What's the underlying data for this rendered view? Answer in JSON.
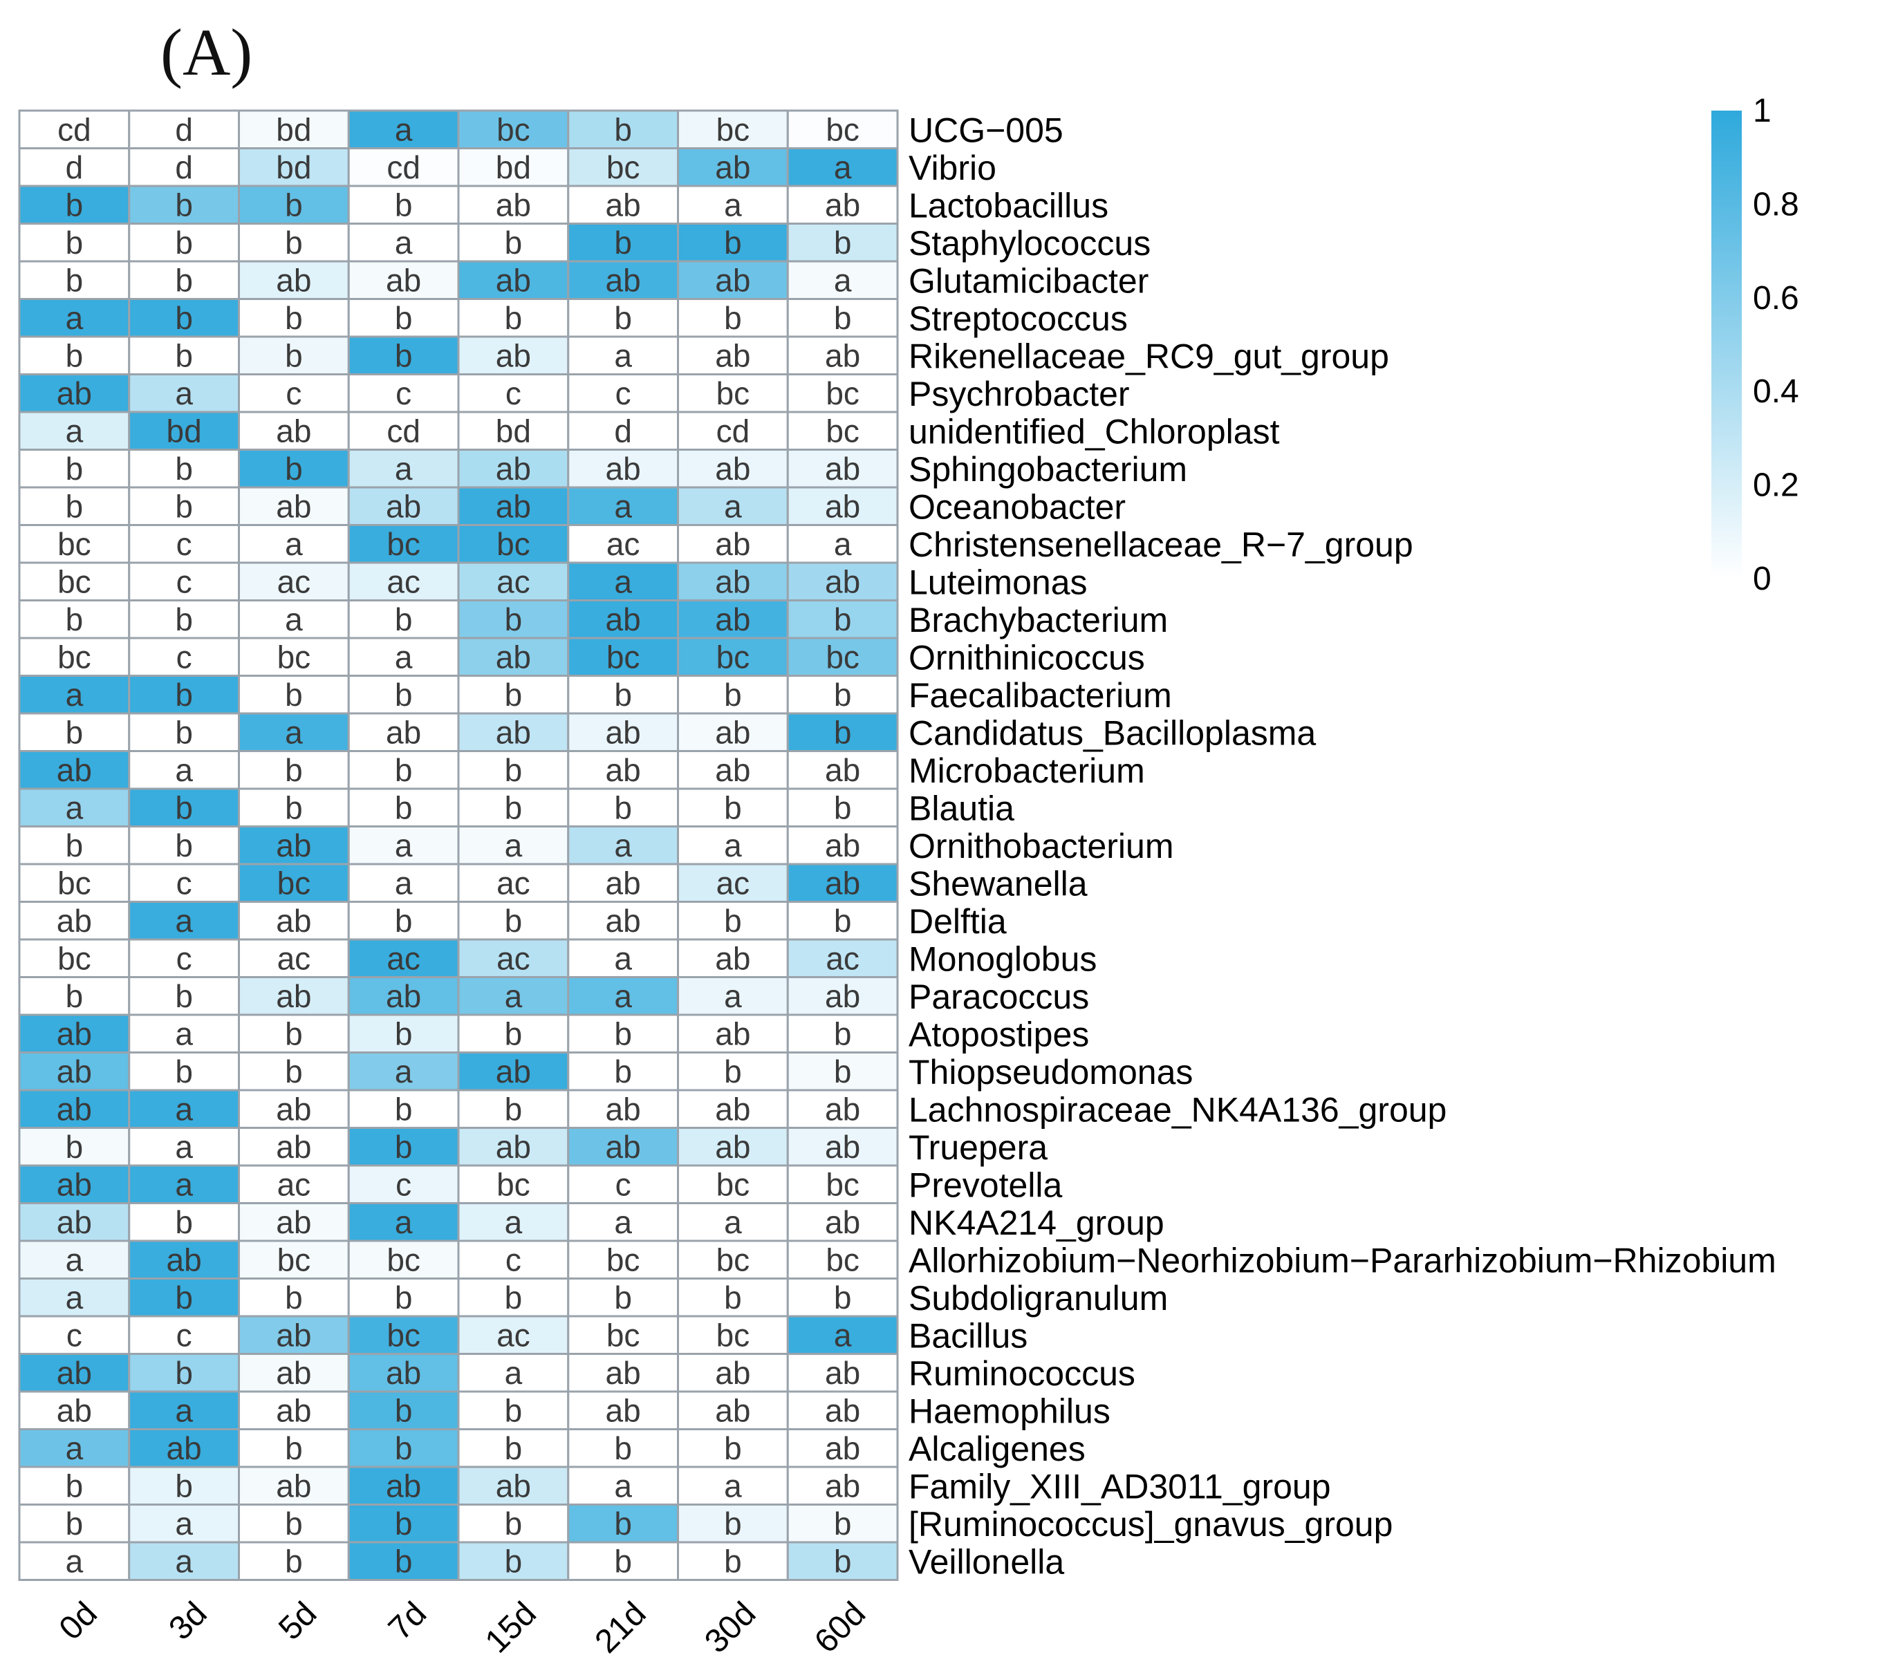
{
  "figure": {
    "panel_label": "(A)"
  },
  "chart_data": {
    "type": "heatmap",
    "columns": [
      "0d",
      "3d",
      "5d",
      "7d",
      "15d",
      "21d",
      "30d",
      "60d"
    ],
    "legend": {
      "min": 0,
      "max": 1,
      "ticks": [
        "1",
        "0.8",
        "0.6",
        "0.4",
        "0.2",
        "0"
      ],
      "low_color": "#ffffff",
      "high_color": "#2ea9dc"
    },
    "rows": [
      {
        "name": "UCG−005",
        "labels": [
          "cd",
          "d",
          "bd",
          "a",
          "bc",
          "b",
          "bc",
          "bc"
        ],
        "values": [
          0,
          0,
          0.05,
          0.95,
          0.7,
          0.4,
          0.08,
          0.02
        ]
      },
      {
        "name": "Vibrio",
        "labels": [
          "d",
          "d",
          "bd",
          "cd",
          "bd",
          "bc",
          "ab",
          "a"
        ],
        "values": [
          0,
          0,
          0.3,
          0.02,
          0.03,
          0.25,
          0.75,
          0.95
        ]
      },
      {
        "name": "Lactobacillus",
        "labels": [
          "b",
          "b",
          "b",
          "b",
          "ab",
          "ab",
          "a",
          "ab"
        ],
        "values": [
          0.95,
          0.65,
          0.75,
          0,
          0,
          0,
          0,
          0
        ]
      },
      {
        "name": "Staphylococcus",
        "labels": [
          "b",
          "b",
          "b",
          "a",
          "b",
          "b",
          "b",
          "b"
        ],
        "values": [
          0,
          0,
          0,
          0,
          0,
          0.95,
          0.95,
          0.25
        ]
      },
      {
        "name": "Glutamicibacter",
        "labels": [
          "b",
          "b",
          "ab",
          "ab",
          "ab",
          "ab",
          "ab",
          "a"
        ],
        "values": [
          0,
          0,
          0.15,
          0.05,
          0.85,
          0.9,
          0.7,
          0.05
        ]
      },
      {
        "name": "Streptococcus",
        "labels": [
          "a",
          "b",
          "b",
          "b",
          "b",
          "b",
          "b",
          "b"
        ],
        "values": [
          0.95,
          0.95,
          0,
          0,
          0,
          0,
          0,
          0
        ]
      },
      {
        "name": "Rikenellaceae_RC9_gut_group",
        "labels": [
          "b",
          "b",
          "b",
          "b",
          "ab",
          "a",
          "ab",
          "ab"
        ],
        "values": [
          0,
          0,
          0.08,
          0.95,
          0.15,
          0,
          0,
          0
        ]
      },
      {
        "name": "Psychrobacter",
        "labels": [
          "ab",
          "a",
          "c",
          "c",
          "c",
          "c",
          "bc",
          "bc"
        ],
        "values": [
          0.95,
          0.35,
          0,
          0,
          0,
          0,
          0,
          0
        ]
      },
      {
        "name": "unidentified_Chloroplast",
        "labels": [
          "a",
          "bd",
          "ab",
          "cd",
          "bd",
          "d",
          "cd",
          "bc"
        ],
        "values": [
          0.18,
          0.95,
          0,
          0,
          0,
          0,
          0,
          0
        ]
      },
      {
        "name": "Sphingobacterium",
        "labels": [
          "b",
          "b",
          "b",
          "a",
          "ab",
          "ab",
          "ab",
          "ab"
        ],
        "values": [
          0,
          0,
          0.95,
          0.25,
          0.4,
          0.1,
          0.1,
          0.1
        ]
      },
      {
        "name": "Oceanobacter",
        "labels": [
          "b",
          "b",
          "ab",
          "ab",
          "ab",
          "a",
          "a",
          "ab"
        ],
        "values": [
          0,
          0,
          0.05,
          0.35,
          0.95,
          0.85,
          0.35,
          0.15
        ]
      },
      {
        "name": "Christensenellaceae_R−7_group",
        "labels": [
          "bc",
          "c",
          "a",
          "bc",
          "bc",
          "ac",
          "ab",
          "a"
        ],
        "values": [
          0,
          0,
          0,
          0.95,
          0.95,
          0,
          0,
          0
        ]
      },
      {
        "name": "Luteimonas",
        "labels": [
          "bc",
          "c",
          "ac",
          "ac",
          "ac",
          "a",
          "ab",
          "ab"
        ],
        "values": [
          0,
          0,
          0.08,
          0.15,
          0.4,
          0.95,
          0.55,
          0.45
        ]
      },
      {
        "name": "Brachybacterium",
        "labels": [
          "b",
          "b",
          "a",
          "b",
          "b",
          "ab",
          "ab",
          "b"
        ],
        "values": [
          0,
          0,
          0,
          0,
          0.6,
          0.95,
          0.9,
          0.5
        ]
      },
      {
        "name": "Ornithinicoccus",
        "labels": [
          "bc",
          "c",
          "bc",
          "a",
          "ab",
          "bc",
          "bc",
          "bc"
        ],
        "values": [
          0,
          0,
          0,
          0,
          0.55,
          0.95,
          0.85,
          0.65
        ]
      },
      {
        "name": "Faecalibacterium",
        "labels": [
          "a",
          "b",
          "b",
          "b",
          "b",
          "b",
          "b",
          "b"
        ],
        "values": [
          0.95,
          0.95,
          0,
          0,
          0,
          0,
          0,
          0
        ]
      },
      {
        "name": "Candidatus_Bacilloplasma",
        "labels": [
          "b",
          "b",
          "a",
          "ab",
          "ab",
          "ab",
          "ab",
          "b"
        ],
        "values": [
          0,
          0,
          0.9,
          0,
          0.3,
          0.1,
          0.05,
          0.95
        ]
      },
      {
        "name": "Microbacterium",
        "labels": [
          "ab",
          "a",
          "b",
          "b",
          "b",
          "ab",
          "ab",
          "ab"
        ],
        "values": [
          0.95,
          0,
          0,
          0,
          0,
          0,
          0,
          0
        ]
      },
      {
        "name": "Blautia",
        "labels": [
          "a",
          "b",
          "b",
          "b",
          "b",
          "b",
          "b",
          "b"
        ],
        "values": [
          0.5,
          0.95,
          0,
          0,
          0,
          0,
          0,
          0
        ]
      },
      {
        "name": "Ornithobacterium",
        "labels": [
          "b",
          "b",
          "ab",
          "a",
          "a",
          "a",
          "a",
          "ab"
        ],
        "values": [
          0,
          0,
          0.95,
          0.05,
          0.05,
          0.35,
          0,
          0
        ]
      },
      {
        "name": "Shewanella",
        "labels": [
          "bc",
          "c",
          "bc",
          "a",
          "ac",
          "ab",
          "ac",
          "ab"
        ],
        "values": [
          0,
          0,
          0.95,
          0,
          0,
          0,
          0.2,
          0.95
        ]
      },
      {
        "name": "Delftia",
        "labels": [
          "ab",
          "a",
          "ab",
          "b",
          "b",
          "ab",
          "b",
          "b"
        ],
        "values": [
          0,
          0.95,
          0,
          0,
          0,
          0,
          0,
          0
        ]
      },
      {
        "name": "Monoglobus",
        "labels": [
          "bc",
          "c",
          "ac",
          "ac",
          "ac",
          "a",
          "ab",
          "ac"
        ],
        "values": [
          0,
          0,
          0,
          0.95,
          0.35,
          0,
          0,
          0.3
        ]
      },
      {
        "name": "Paracoccus",
        "labels": [
          "b",
          "b",
          "ab",
          "ab",
          "a",
          "a",
          "a",
          "ab"
        ],
        "values": [
          0,
          0,
          0.2,
          0.75,
          0.65,
          0.75,
          0.1,
          0.1
        ]
      },
      {
        "name": "Atopostipes",
        "labels": [
          "ab",
          "a",
          "b",
          "b",
          "b",
          "b",
          "ab",
          "b"
        ],
        "values": [
          0.95,
          0,
          0,
          0.15,
          0,
          0,
          0,
          0
        ]
      },
      {
        "name": "Thiopseudomonas",
        "labels": [
          "ab",
          "b",
          "b",
          "a",
          "ab",
          "b",
          "b",
          "b"
        ],
        "values": [
          0.75,
          0,
          0,
          0.6,
          0.95,
          0,
          0,
          0.05
        ]
      },
      {
        "name": "Lachnospiraceae_NK4A136_group",
        "labels": [
          "ab",
          "a",
          "ab",
          "b",
          "b",
          "ab",
          "ab",
          "ab"
        ],
        "values": [
          0.95,
          0.95,
          0,
          0,
          0,
          0,
          0,
          0
        ]
      },
      {
        "name": "Truepera",
        "labels": [
          "b",
          "a",
          "ab",
          "b",
          "ab",
          "ab",
          "ab",
          "ab"
        ],
        "values": [
          0.05,
          0,
          0,
          0.95,
          0.25,
          0.7,
          0.2,
          0.1
        ]
      },
      {
        "name": "Prevotella",
        "labels": [
          "ab",
          "a",
          "ac",
          "c",
          "bc",
          "c",
          "bc",
          "bc"
        ],
        "values": [
          0.95,
          0.95,
          0,
          0.1,
          0,
          0,
          0,
          0
        ]
      },
      {
        "name": "NK4A214_group",
        "labels": [
          "ab",
          "b",
          "ab",
          "a",
          "a",
          "a",
          "a",
          "ab"
        ],
        "values": [
          0.35,
          0,
          0.05,
          0.95,
          0.15,
          0,
          0,
          0
        ]
      },
      {
        "name": "Allorhizobium−Neorhizobium−Pararhizobium−Rhizobium",
        "labels": [
          "a",
          "ab",
          "bc",
          "bc",
          "c",
          "bc",
          "bc",
          "bc"
        ],
        "values": [
          0.08,
          0.95,
          0.05,
          0.05,
          0,
          0,
          0,
          0
        ]
      },
      {
        "name": "Subdoligranulum",
        "labels": [
          "a",
          "b",
          "b",
          "b",
          "b",
          "b",
          "b",
          "b"
        ],
        "values": [
          0.2,
          0.95,
          0,
          0,
          0,
          0,
          0,
          0
        ]
      },
      {
        "name": "Bacillus",
        "labels": [
          "c",
          "c",
          "ab",
          "bc",
          "ac",
          "bc",
          "bc",
          "a"
        ],
        "values": [
          0,
          0,
          0.6,
          0.9,
          0.15,
          0,
          0,
          0.95
        ]
      },
      {
        "name": "Ruminococcus",
        "labels": [
          "ab",
          "b",
          "ab",
          "ab",
          "a",
          "ab",
          "ab",
          "ab"
        ],
        "values": [
          0.95,
          0.5,
          0.05,
          0.75,
          0,
          0,
          0,
          0
        ]
      },
      {
        "name": "Haemophilus",
        "labels": [
          "ab",
          "a",
          "ab",
          "b",
          "b",
          "ab",
          "ab",
          "ab"
        ],
        "values": [
          0,
          0.95,
          0,
          0.85,
          0,
          0,
          0,
          0
        ]
      },
      {
        "name": "Alcaligenes",
        "labels": [
          "a",
          "ab",
          "b",
          "b",
          "b",
          "b",
          "b",
          "ab"
        ],
        "values": [
          0.7,
          0.95,
          0,
          0.75,
          0,
          0,
          0,
          0
        ]
      },
      {
        "name": "Family_XIII_AD3011_group",
        "labels": [
          "b",
          "b",
          "ab",
          "ab",
          "ab",
          "a",
          "a",
          "ab"
        ],
        "values": [
          0,
          0.12,
          0.05,
          0.95,
          0.25,
          0,
          0,
          0
        ]
      },
      {
        "name": "[Ruminococcus]_gnavus_group",
        "labels": [
          "b",
          "a",
          "b",
          "b",
          "b",
          "b",
          "b",
          "b"
        ],
        "values": [
          0,
          0.12,
          0,
          0.95,
          0,
          0.75,
          0.1,
          0.05
        ]
      },
      {
        "name": "Veillonella",
        "labels": [
          "a",
          "a",
          "b",
          "b",
          "b",
          "b",
          "b",
          "b"
        ],
        "values": [
          0,
          0.35,
          0,
          0.95,
          0.3,
          0,
          0,
          0.35
        ]
      }
    ]
  }
}
